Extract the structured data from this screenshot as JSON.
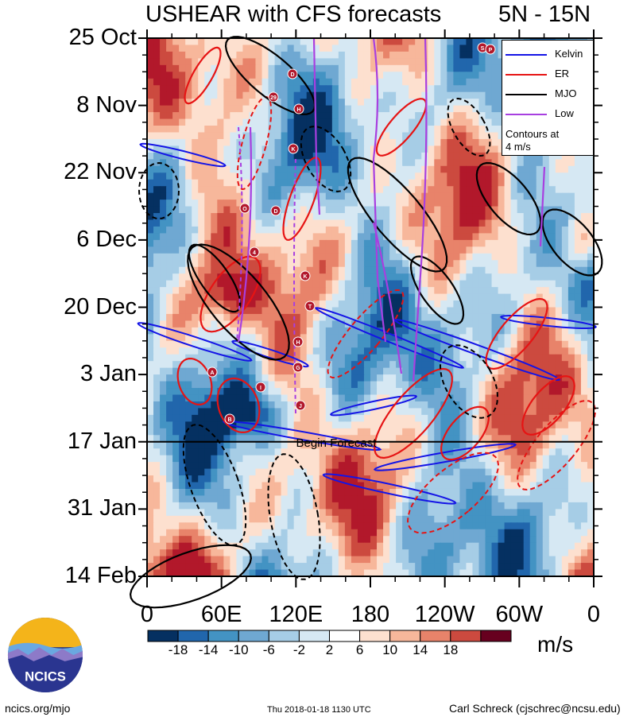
{
  "header": {
    "title": "USHEAR with CFS forecasts",
    "region": "5N - 15N"
  },
  "chart_data": {
    "type": "heatmap",
    "title": "USHEAR with CFS forecasts",
    "subtitle": "5N - 15N",
    "ylabel": "",
    "xlabel": "",
    "y_ticks": [
      "25 Oct",
      "8 Nov",
      "22 Nov",
      "6 Dec",
      "20 Dec",
      "3 Jan",
      "17 Jan",
      "31 Jan",
      "14 Feb"
    ],
    "x_ticks": [
      "0",
      "60E",
      "120E",
      "180",
      "120W",
      "60W",
      "0"
    ],
    "x_range_deg": [
      0,
      360
    ],
    "forecast_line": {
      "date": "17 Jan",
      "label": "Begin Forecast"
    },
    "colorbar": {
      "units": "m/s",
      "levels": [
        -18,
        -14,
        -10,
        -6,
        -2,
        2,
        6,
        10,
        14,
        18
      ],
      "labels": [
        "-18",
        "-14",
        "-10",
        "-6",
        "-2",
        "2",
        "6",
        "10",
        "14",
        "18"
      ],
      "colors": [
        "#053061",
        "#2166ac",
        "#4393c3",
        "#6fa8d2",
        "#a6cde6",
        "#d6e8f3",
        "#ffffff",
        "#fde0cf",
        "#f7b79b",
        "#e8836a",
        "#cc4a3f",
        "#b2182b",
        "#67001f"
      ]
    },
    "legend": {
      "entries": [
        {
          "name": "Kelvin",
          "color": "#1414e6"
        },
        {
          "name": "ER",
          "color": "#e61414"
        },
        {
          "name": "MJO",
          "color": "#000000"
        },
        {
          "name": "Low",
          "color": "#a83fe0"
        }
      ],
      "note": [
        "Contours at",
        "4 m/s"
      ]
    },
    "storm_markers": [
      "S",
      "P",
      "D",
      "29",
      "H",
      "K",
      "O",
      "D",
      "4",
      "K",
      "T",
      "H",
      "G",
      "A",
      "I",
      "J",
      "B"
    ]
  },
  "footer": {
    "logo_text": "NCICS",
    "website": "ncics.org/mjo",
    "timestamp": "Thu 2018-01-18 1130 UTC",
    "author": "Carl Schreck (cjschrec@ncsu.edu)"
  }
}
